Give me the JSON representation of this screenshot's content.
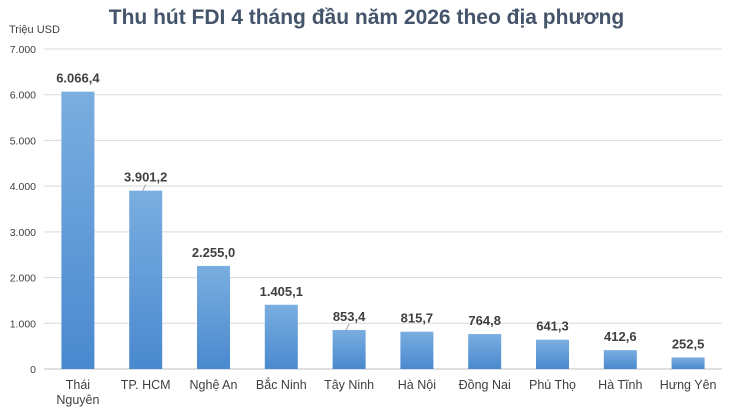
{
  "chart_data": {
    "type": "bar",
    "title": "Thu hút FDI 4 tháng đầu năm 2026 theo địa phương",
    "ylabel": "Triệu USD",
    "xlabel": "",
    "ylim": [
      0,
      7000
    ],
    "yticks": [
      0,
      1000,
      2000,
      3000,
      4000,
      5000,
      6000,
      7000
    ],
    "ytick_labels": [
      "0",
      "1.000",
      "2.000",
      "3.000",
      "4.000",
      "5.000",
      "6.000",
      "7.000"
    ],
    "grid": true,
    "legend": "none",
    "bar_color": "#5b9bd5",
    "categories": [
      [
        "Thái",
        "Nguyên"
      ],
      [
        "TP. HCM"
      ],
      [
        "Nghệ An"
      ],
      [
        "Bắc Ninh"
      ],
      [
        "Tây Ninh"
      ],
      [
        "Hà Nội"
      ],
      [
        "Đồng Nai"
      ],
      [
        "Phú Thọ"
      ],
      [
        "Hà Tĩnh"
      ],
      [
        "Hưng Yên"
      ]
    ],
    "values": [
      6066.4,
      3901.2,
      2255.0,
      1405.1,
      853.4,
      815.7,
      764.8,
      641.3,
      412.6,
      252.5
    ],
    "value_labels": [
      "6.066,4",
      "3.901,2",
      "2.255,0",
      "1.405,1",
      "853,4",
      "815,7",
      "764,8",
      "641,3",
      "412,6",
      "252,5"
    ]
  }
}
